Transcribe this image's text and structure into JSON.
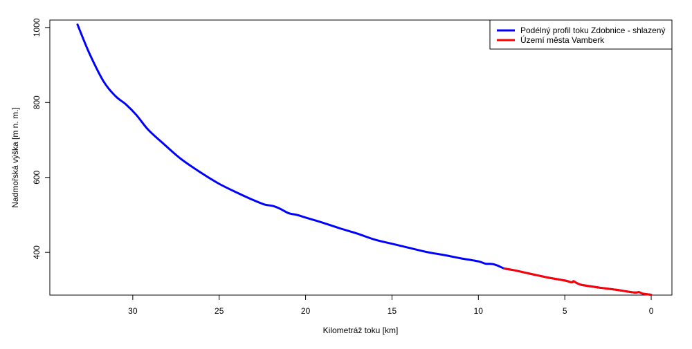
{
  "colors": {
    "background": "#ffffff",
    "axis": "#000000",
    "profile": "#0000ff",
    "town": "#ff0000"
  },
  "chart_data": {
    "type": "line",
    "title": "",
    "xlabel": "Kilometráž toku [km]",
    "ylabel": "Nadmořská výška [m n. m.]",
    "x_reversed": true,
    "xlim": [
      34.8,
      -1.2
    ],
    "ylim": [
      286,
      1020
    ],
    "x_ticks": [
      30,
      25,
      20,
      15,
      10,
      5,
      0
    ],
    "x_tick_labels": [
      "30",
      "25",
      "20",
      "15",
      "10",
      "5",
      "0"
    ],
    "y_ticks": [
      400,
      600,
      800,
      1000
    ],
    "y_tick_labels": [
      "400",
      "600",
      "800",
      "1000"
    ],
    "grid": false,
    "legend_position": "top-right",
    "series": [
      {
        "name": "Podélný profil toku Zdobnice - shlazený",
        "color": "#0000ff",
        "x": [
          33.2,
          32.5,
          31.7,
          31.0,
          30.4,
          29.8,
          29.1,
          28.2,
          27.2,
          26.0,
          25.0,
          24.0,
          23.1,
          22.4,
          21.9,
          21.5,
          21.0,
          20.5,
          20.0,
          19.0,
          18.0,
          17.0,
          16.0,
          15.0,
          14.0,
          13.0,
          12.0,
          11.0,
          10.0,
          9.6,
          9.2,
          8.9,
          8.5,
          8.0,
          7.0,
          6.0,
          5.0,
          4.6,
          4.5,
          4.3,
          4.0,
          3.0,
          2.0,
          1.0,
          0.7,
          0.5,
          0.0
        ],
        "y": [
          1008,
          930,
          857,
          817,
          795,
          767,
          727,
          689,
          649,
          611,
          583,
          560,
          541,
          528,
          524,
          517,
          505,
          500,
          493,
          479,
          464,
          450,
          434,
          423,
          412,
          401,
          393,
          384,
          376,
          370,
          369,
          365,
          357,
          353,
          343,
          333,
          325,
          320,
          323,
          318,
          313,
          306,
          300,
          293,
          294,
          290,
          287
        ]
      },
      {
        "name": "Území města Vamberk",
        "color": "#ff0000",
        "x": [
          8.5,
          8.0,
          7.0,
          6.0,
          5.0,
          4.6,
          4.5,
          4.3,
          4.0,
          3.0,
          2.0,
          1.0,
          0.7,
          0.5,
          0.0
        ],
        "y": [
          357,
          353,
          343,
          333,
          325,
          320,
          323,
          318,
          313,
          306,
          300,
          293,
          294,
          290,
          287
        ]
      }
    ]
  }
}
